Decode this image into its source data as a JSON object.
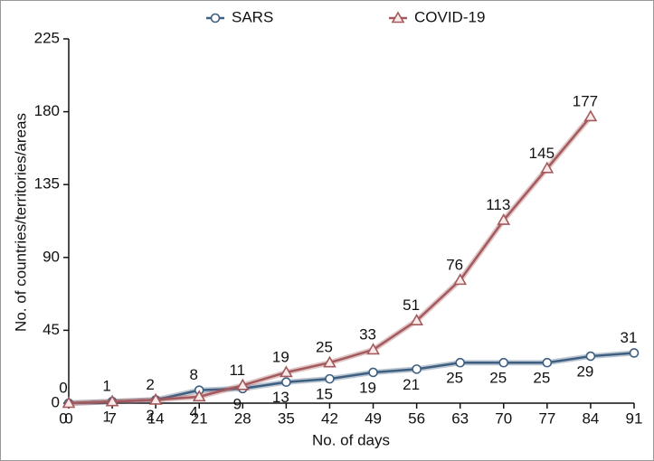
{
  "chart_data": {
    "type": "line",
    "x_label": "No. of days",
    "y_label": "No. of countries/territories/areas",
    "x": [
      0,
      7,
      14,
      21,
      28,
      35,
      42,
      49,
      56,
      63,
      70,
      77,
      84,
      91
    ],
    "series": [
      {
        "name": "SARS",
        "color": "#3e5f80",
        "marker": "circle",
        "values": [
          0,
          1,
          2,
          8,
          9,
          13,
          15,
          19,
          21,
          25,
          25,
          25,
          29,
          31
        ]
      },
      {
        "name": "COVID-19",
        "color": "#a45a5c",
        "marker": "triangle",
        "values": [
          0,
          1,
          2,
          4,
          11,
          19,
          25,
          33,
          51,
          76,
          113,
          145,
          177,
          null
        ]
      }
    ],
    "xlim": [
      0,
      91
    ],
    "xticks": [
      0,
      7,
      14,
      21,
      28,
      35,
      42,
      49,
      56,
      63,
      70,
      77,
      84,
      91
    ],
    "ylim": [
      0,
      225
    ],
    "yticks": [
      0,
      45,
      90,
      135,
      180,
      225
    ],
    "legend": "top"
  }
}
